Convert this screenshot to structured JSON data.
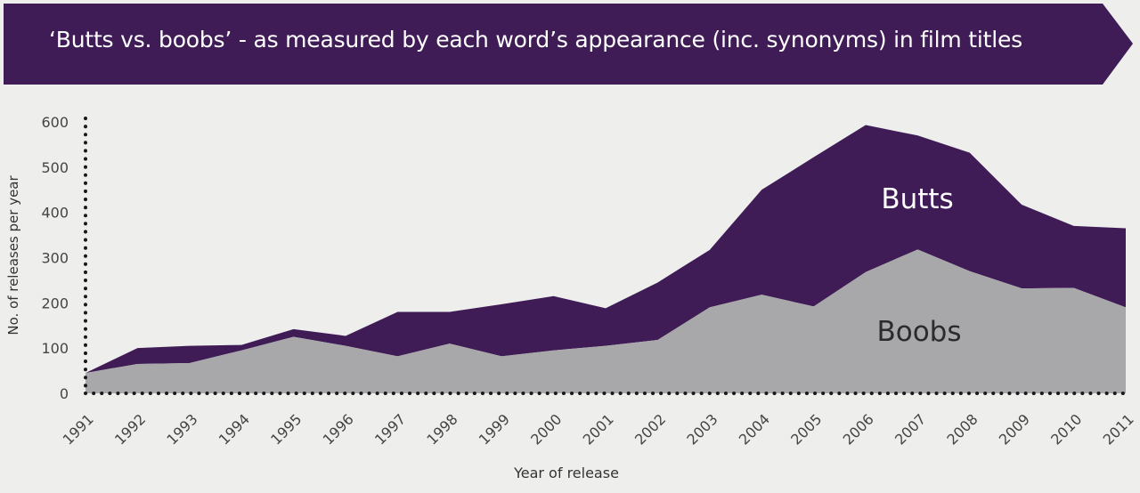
{
  "title": "‘Butts vs. boobs’ - as measured by each word’s appearance (inc. synonyms) in film titles",
  "colors": {
    "banner": "#3f1c56",
    "butts": "#3f1c56",
    "boobs": "#a8a8aa",
    "axis": "#1a1a1a",
    "butts_label": "#ffffff",
    "boobs_label": "#2b2b2b"
  },
  "chart_data": {
    "type": "area",
    "stacked": true,
    "x": [
      "1991",
      "1992",
      "1993",
      "1994",
      "1995",
      "1996",
      "1997",
      "1998",
      "1999",
      "2000",
      "2001",
      "2002",
      "2003",
      "2004",
      "2005",
      "2006",
      "2007",
      "2008",
      "2009",
      "2010",
      "2011"
    ],
    "series": [
      {
        "name": "Boobs",
        "values": [
          45,
          65,
          67,
          95,
          125,
          105,
          82,
          110,
          82,
          95,
          105,
          118,
          190,
          218,
          192,
          268,
          318,
          270,
          232,
          233,
          190
        ]
      },
      {
        "name": "Butts",
        "values": [
          0,
          35,
          38,
          12,
          17,
          22,
          98,
          70,
          115,
          120,
          83,
          127,
          127,
          232,
          330,
          325,
          252,
          262,
          185,
          137,
          175
        ]
      }
    ],
    "xlabel": "Year of release",
    "ylabel": "No. of releases per year",
    "ylim": [
      0,
      600
    ],
    "yticks": [
      "0",
      "100",
      "200",
      "300",
      "400",
      "500",
      "600"
    ],
    "grid": false
  }
}
